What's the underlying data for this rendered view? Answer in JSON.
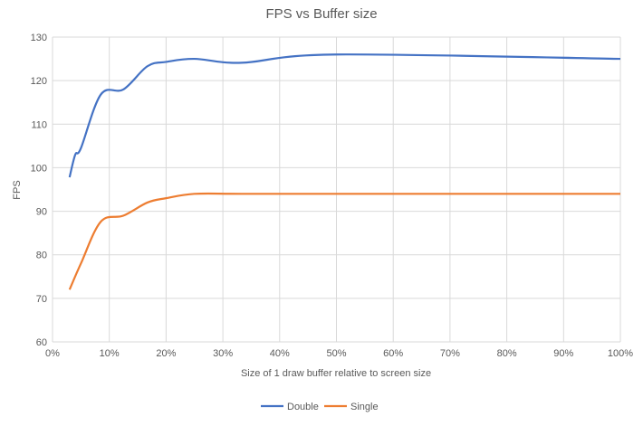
{
  "chart_data": {
    "type": "line",
    "title": "FPS vs Buffer size",
    "xlabel": "Size of 1 draw buffer relative to screen size",
    "ylabel": "FPS",
    "xlim": [
      0,
      100
    ],
    "ylim": [
      60,
      130
    ],
    "x_ticks": [
      "0%",
      "10%",
      "20%",
      "30%",
      "40%",
      "50%",
      "60%",
      "70%",
      "80%",
      "90%",
      "100%"
    ],
    "y_ticks": [
      "60",
      "70",
      "80",
      "90",
      "100",
      "110",
      "120",
      "130"
    ],
    "grid": true,
    "legend": "bottom",
    "series": [
      {
        "name": "Double",
        "color": "#4472C4",
        "points": [
          [
            3,
            97.8
          ],
          [
            4,
            103
          ],
          [
            5,
            104.5
          ],
          [
            8.5,
            116.8
          ],
          [
            12.5,
            118
          ],
          [
            16.7,
            123.3
          ],
          [
            20,
            124.3
          ],
          [
            25,
            125
          ],
          [
            33.3,
            124.1
          ],
          [
            50,
            126
          ],
          [
            100,
            125
          ]
        ]
      },
      {
        "name": "Single",
        "color": "#ED7D31",
        "points": [
          [
            3,
            72
          ],
          [
            5,
            78
          ],
          [
            8.5,
            87.6
          ],
          [
            12.5,
            89
          ],
          [
            16.7,
            92
          ],
          [
            20,
            93
          ],
          [
            25,
            94
          ],
          [
            33.3,
            94
          ],
          [
            50,
            94
          ],
          [
            100,
            94
          ]
        ]
      }
    ]
  }
}
